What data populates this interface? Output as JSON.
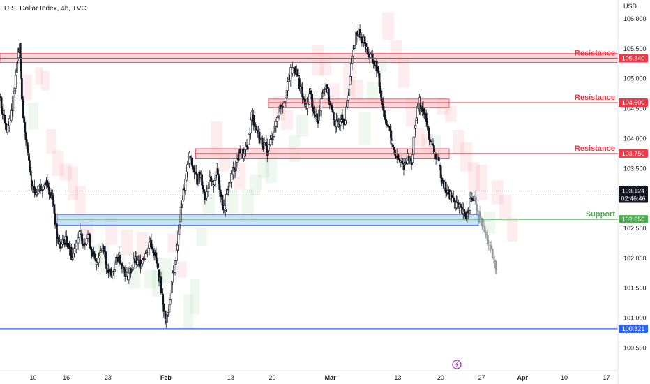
{
  "chart_data": {
    "type": "candlestick",
    "title": "U.S. Dollar Index, 4h, TVC",
    "currency_label": "USD",
    "y_axis_ticks": [
      106.0,
      105.5,
      105.0,
      104.5,
      104.0,
      103.5,
      103.0,
      102.5,
      102.0,
      101.5,
      101.0,
      100.5
    ],
    "y_axis_tick_labels": [
      "106.000",
      "105.500",
      "105.000",
      "104.500",
      "104.000",
      "103.500",
      "103.000",
      "102.500",
      "102.000",
      "101.500",
      "101.000",
      "100.500"
    ],
    "ylim": [
      100.2,
      106.2
    ],
    "x_axis_ticks": [
      {
        "label": "10",
        "pos": 0.051
      },
      {
        "label": "16",
        "pos": 0.102
      },
      {
        "label": "23",
        "pos": 0.166
      },
      {
        "label": "Feb",
        "pos": 0.252
      },
      {
        "label": "13",
        "pos": 0.355
      },
      {
        "label": "20",
        "pos": 0.419
      },
      {
        "label": "Mar",
        "pos": 0.505
      },
      {
        "label": "13",
        "pos": 0.612
      },
      {
        "label": "20",
        "pos": 0.678
      },
      {
        "label": "27",
        "pos": 0.741
      },
      {
        "label": "Apr",
        "pos": 0.801
      },
      {
        "label": "10",
        "pos": 0.868
      },
      {
        "label": "17",
        "pos": 0.933
      }
    ],
    "levels": [
      {
        "name": "Resistance",
        "price": 105.34,
        "label": "105.340",
        "color": "#f23645",
        "zone": [
          105.27,
          105.42
        ],
        "zone_start": 0.0
      },
      {
        "name": "Resistance",
        "price": 104.6,
        "label": "104.600",
        "color": "#f23645",
        "zone": [
          104.52,
          104.66
        ],
        "zone_start": 0.413
      },
      {
        "name": "Resistance",
        "price": 103.75,
        "label": "103.750",
        "color": "#f23645",
        "zone": [
          103.66,
          103.83
        ],
        "zone_start": 0.301
      },
      {
        "name": "Support",
        "price": 102.65,
        "label": "102.650",
        "color": "#4caf50",
        "zone": [
          102.55,
          102.73
        ],
        "zone_start": 0.088
      }
    ],
    "low_line": {
      "price": 100.821,
      "label": "100.821",
      "color": "#2962ff"
    },
    "current_price": {
      "price": 103.124,
      "label": "103.124",
      "countdown": "02:46:46"
    },
    "price_path": [
      [
        0.0,
        104.7
      ],
      [
        0.006,
        104.4
      ],
      [
        0.011,
        104.1
      ],
      [
        0.017,
        104.3
      ],
      [
        0.022,
        104.8
      ],
      [
        0.027,
        105.3
      ],
      [
        0.031,
        105.6
      ],
      [
        0.034,
        104.7
      ],
      [
        0.039,
        104.1
      ],
      [
        0.044,
        103.7
      ],
      [
        0.048,
        103.3
      ],
      [
        0.054,
        103.1
      ],
      [
        0.06,
        103.2
      ],
      [
        0.066,
        103.15
      ],
      [
        0.072,
        103.3
      ],
      [
        0.078,
        103.1
      ],
      [
        0.083,
        102.9
      ],
      [
        0.088,
        102.35
      ],
      [
        0.094,
        102.2
      ],
      [
        0.1,
        102.3
      ],
      [
        0.106,
        102.25
      ],
      [
        0.112,
        102.0
      ],
      [
        0.118,
        102.3
      ],
      [
        0.124,
        102.4
      ],
      [
        0.13,
        102.25
      ],
      [
        0.136,
        102.4
      ],
      [
        0.142,
        102.1
      ],
      [
        0.148,
        101.9
      ],
      [
        0.154,
        102.1
      ],
      [
        0.16,
        102.2
      ],
      [
        0.166,
        101.8
      ],
      [
        0.172,
        101.7
      ],
      [
        0.178,
        101.9
      ],
      [
        0.184,
        102.05
      ],
      [
        0.19,
        101.85
      ],
      [
        0.196,
        101.7
      ],
      [
        0.202,
        101.8
      ],
      [
        0.208,
        101.95
      ],
      [
        0.214,
        101.9
      ],
      [
        0.22,
        102.0
      ],
      [
        0.226,
        102.1
      ],
      [
        0.232,
        102.3
      ],
      [
        0.238,
        102.1
      ],
      [
        0.244,
        101.8
      ],
      [
        0.25,
        101.4
      ],
      [
        0.255,
        100.95
      ],
      [
        0.26,
        101.1
      ],
      [
        0.265,
        101.6
      ],
      [
        0.27,
        101.9
      ],
      [
        0.275,
        102.4
      ],
      [
        0.28,
        102.9
      ],
      [
        0.286,
        103.3
      ],
      [
        0.292,
        103.7
      ],
      [
        0.298,
        103.5
      ],
      [
        0.304,
        103.3
      ],
      [
        0.31,
        103.4
      ],
      [
        0.316,
        103.0
      ],
      [
        0.322,
        103.3
      ],
      [
        0.328,
        103.2
      ],
      [
        0.334,
        103.5
      ],
      [
        0.34,
        103.1
      ],
      [
        0.346,
        102.8
      ],
      [
        0.352,
        103.2
      ],
      [
        0.358,
        103.4
      ],
      [
        0.364,
        103.6
      ],
      [
        0.37,
        103.8
      ],
      [
        0.376,
        103.7
      ],
      [
        0.382,
        103.9
      ],
      [
        0.388,
        104.4
      ],
      [
        0.394,
        104.2
      ],
      [
        0.4,
        104.0
      ],
      [
        0.406,
        103.9
      ],
      [
        0.412,
        103.8
      ],
      [
        0.418,
        104.0
      ],
      [
        0.424,
        104.2
      ],
      [
        0.43,
        104.5
      ],
      [
        0.436,
        104.6
      ],
      [
        0.442,
        104.8
      ],
      [
        0.448,
        105.1
      ],
      [
        0.454,
        105.2
      ],
      [
        0.46,
        105.0
      ],
      [
        0.466,
        104.7
      ],
      [
        0.472,
        104.5
      ],
      [
        0.478,
        104.8
      ],
      [
        0.484,
        104.4
      ],
      [
        0.49,
        104.3
      ],
      [
        0.496,
        104.8
      ],
      [
        0.502,
        104.9
      ],
      [
        0.508,
        104.6
      ],
      [
        0.514,
        104.3
      ],
      [
        0.52,
        104.2
      ],
      [
        0.526,
        104.4
      ],
      [
        0.532,
        104.3
      ],
      [
        0.538,
        104.9
      ],
      [
        0.544,
        105.5
      ],
      [
        0.55,
        105.8
      ],
      [
        0.556,
        105.7
      ],
      [
        0.562,
        105.6
      ],
      [
        0.568,
        105.4
      ],
      [
        0.574,
        105.3
      ],
      [
        0.58,
        105.2
      ],
      [
        0.586,
        104.8
      ],
      [
        0.592,
        104.4
      ],
      [
        0.598,
        104.2
      ],
      [
        0.604,
        103.9
      ],
      [
        0.61,
        103.7
      ],
      [
        0.616,
        103.6
      ],
      [
        0.622,
        103.55
      ],
      [
        0.628,
        103.7
      ],
      [
        0.634,
        103.6
      ],
      [
        0.64,
        104.3
      ],
      [
        0.646,
        104.6
      ],
      [
        0.652,
        104.5
      ],
      [
        0.658,
        104.2
      ],
      [
        0.664,
        103.9
      ],
      [
        0.67,
        103.75
      ],
      [
        0.676,
        103.55
      ],
      [
        0.682,
        103.3
      ],
      [
        0.688,
        103.1
      ],
      [
        0.694,
        103.05
      ],
      [
        0.7,
        102.95
      ],
      [
        0.706,
        102.85
      ],
      [
        0.712,
        102.75
      ],
      [
        0.718,
        102.7
      ],
      [
        0.724,
        102.95
      ],
      [
        0.73,
        103.0
      ],
      [
        0.736,
        102.75
      ],
      [
        0.742,
        102.55
      ],
      [
        0.748,
        102.4
      ],
      [
        0.754,
        102.2
      ],
      [
        0.76,
        101.95
      ],
      [
        0.764,
        101.85
      ]
    ]
  }
}
